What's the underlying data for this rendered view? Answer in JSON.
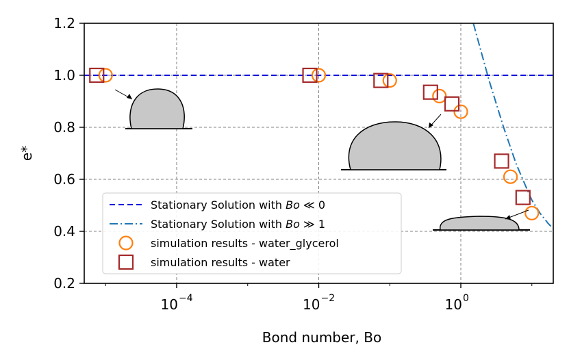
{
  "chart_data": {
    "type": "scatter",
    "xlabel": "Bond number, Bo",
    "ylabel": "e*",
    "xscale": "log",
    "xlim": [
      5e-06,
      20
    ],
    "ylim": [
      0.2,
      1.2
    ],
    "x_ticks": [
      {
        "value": 0.0001,
        "base": "10",
        "exp": "−4"
      },
      {
        "value": 0.01,
        "base": "10",
        "exp": "−2"
      },
      {
        "value": 1,
        "base": "10",
        "exp": "0"
      }
    ],
    "y_ticks": [
      {
        "value": 0.2,
        "label": "0.2"
      },
      {
        "value": 0.4,
        "label": "0.4"
      },
      {
        "value": 0.6,
        "label": "0.6"
      },
      {
        "value": 0.8,
        "label": "0.8"
      },
      {
        "value": 1.0,
        "label": "1.0"
      },
      {
        "value": 1.2,
        "label": "1.2"
      }
    ],
    "grid": true,
    "legend_position": "lower-left",
    "series": [
      {
        "name": "Stationary Solution with Bo ≪ 0",
        "legend_prefix": "Stationary Solution with ",
        "legend_math": "Bo",
        "legend_suffix": " ≪ 0",
        "kind": "line",
        "style": "dashed",
        "color": "#0000dd",
        "x": [
          5e-06,
          20
        ],
        "y": [
          1.0,
          1.0
        ]
      },
      {
        "name": "Stationary Solution with Bo ≫ 1",
        "legend_prefix": "Stationary Solution with ",
        "legend_math": "Bo",
        "legend_suffix": " ≫ 1",
        "kind": "line",
        "style": "dashdot",
        "color": "#1f77b4",
        "x": [
          1.5,
          2.5,
          4,
          6,
          8,
          10,
          13,
          17,
          20
        ],
        "y": [
          1.2,
          0.98,
          0.8,
          0.66,
          0.58,
          0.52,
          0.47,
          0.43,
          0.41
        ]
      },
      {
        "name": "simulation results - water_glycerol",
        "kind": "marker",
        "marker": "circle",
        "color": "#ff7f0e",
        "x": [
          1e-05,
          0.01,
          0.1,
          0.5,
          1.0,
          5.0,
          10.0
        ],
        "y": [
          1.0,
          1.0,
          0.98,
          0.92,
          0.86,
          0.61,
          0.47
        ]
      },
      {
        "name": "simulation results - water",
        "kind": "marker",
        "marker": "square",
        "color": "#a52a2a",
        "x": [
          7.5e-06,
          0.0075,
          0.075,
          0.375,
          0.75,
          3.75,
          7.5
        ],
        "y": [
          1.0,
          1.0,
          0.98,
          0.935,
          0.89,
          0.67,
          0.53
        ]
      }
    ]
  }
}
